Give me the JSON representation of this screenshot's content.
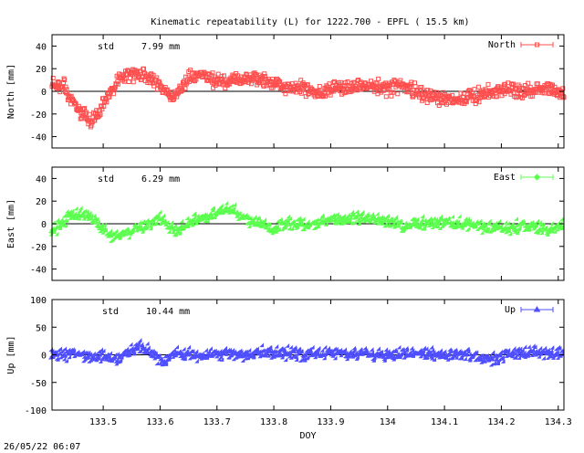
{
  "title": "Kinematic repeatability (L) for 1222.700 - EPFL  ( 15.5 km)",
  "timestamp": "26/05/22 06:07",
  "chart_data": [
    {
      "type": "scatter",
      "ylabel": "North [mm]",
      "ylim": [
        -50,
        50
      ],
      "yticks": [
        -40,
        -20,
        0,
        20,
        40
      ],
      "xlim": [
        133.41,
        134.31
      ],
      "xticks": [
        133.5,
        133.6,
        133.7,
        133.8,
        133.9,
        134.0,
        134.1,
        134.2,
        134.3
      ],
      "std_label": "std",
      "std_value": "7.99 mm",
      "legend": "North",
      "color": "#ff4f4f",
      "marker": "square",
      "profile": [
        [
          133.41,
          7
        ],
        [
          133.43,
          6
        ],
        [
          133.44,
          -5
        ],
        [
          133.46,
          -18
        ],
        [
          133.48,
          -28
        ],
        [
          133.49,
          -22
        ],
        [
          133.5,
          -10
        ],
        [
          133.52,
          5
        ],
        [
          133.53,
          12
        ],
        [
          133.55,
          16
        ],
        [
          133.57,
          15
        ],
        [
          133.59,
          10
        ],
        [
          133.6,
          5
        ],
        [
          133.61,
          0
        ],
        [
          133.62,
          -5
        ],
        [
          133.64,
          5
        ],
        [
          133.65,
          12
        ],
        [
          133.67,
          15
        ],
        [
          133.69,
          10
        ],
        [
          133.72,
          8
        ],
        [
          133.75,
          12
        ],
        [
          133.78,
          10
        ],
        [
          133.82,
          5
        ],
        [
          133.85,
          2
        ],
        [
          133.88,
          0
        ],
        [
          133.92,
          3
        ],
        [
          133.96,
          5
        ],
        [
          134.0,
          2
        ],
        [
          134.02,
          6
        ],
        [
          134.05,
          0
        ],
        [
          134.08,
          -5
        ],
        [
          134.12,
          -8
        ],
        [
          134.15,
          -4
        ],
        [
          134.2,
          2
        ],
        [
          134.25,
          0
        ],
        [
          134.28,
          3
        ],
        [
          134.31,
          -2
        ]
      ],
      "noise": 6
    },
    {
      "type": "scatter",
      "ylabel": "East [mm]",
      "ylim": [
        -50,
        50
      ],
      "yticks": [
        -40,
        -20,
        0,
        20,
        40
      ],
      "xlim": [
        133.41,
        134.31
      ],
      "xticks": [
        133.5,
        133.6,
        133.7,
        133.8,
        133.9,
        134.0,
        134.1,
        134.2,
        134.3
      ],
      "std_label": "std",
      "std_value": "6.29 mm",
      "legend": "East",
      "color": "#5cff4f",
      "marker": "diamond",
      "profile": [
        [
          133.41,
          -8
        ],
        [
          133.42,
          -5
        ],
        [
          133.44,
          5
        ],
        [
          133.46,
          8
        ],
        [
          133.48,
          5
        ],
        [
          133.5,
          -5
        ],
        [
          133.52,
          -12
        ],
        [
          133.54,
          -10
        ],
        [
          133.56,
          -5
        ],
        [
          133.58,
          -3
        ],
        [
          133.6,
          5
        ],
        [
          133.61,
          0
        ],
        [
          133.63,
          -8
        ],
        [
          133.65,
          0
        ],
        [
          133.68,
          5
        ],
        [
          133.7,
          8
        ],
        [
          133.72,
          12
        ],
        [
          133.74,
          8
        ],
        [
          133.76,
          2
        ],
        [
          133.8,
          -5
        ],
        [
          133.83,
          0
        ],
        [
          133.86,
          -3
        ],
        [
          133.89,
          2
        ],
        [
          133.92,
          3
        ],
        [
          133.96,
          5
        ],
        [
          134.0,
          2
        ],
        [
          134.03,
          -3
        ],
        [
          134.06,
          -1
        ],
        [
          134.1,
          0
        ],
        [
          134.15,
          -2
        ],
        [
          134.2,
          -5
        ],
        [
          134.25,
          -3
        ],
        [
          134.28,
          -6
        ],
        [
          134.31,
          -3
        ]
      ],
      "noise": 5
    },
    {
      "type": "scatter",
      "ylabel": "Up [mm]",
      "ylim": [
        -100,
        100
      ],
      "yticks": [
        -100,
        -50,
        0,
        50,
        100
      ],
      "xlim": [
        133.41,
        134.31
      ],
      "xticks": [
        133.5,
        133.6,
        133.7,
        133.8,
        133.9,
        134.0,
        134.1,
        134.2,
        134.3
      ],
      "xticklabels": [
        "133.5",
        "133.6",
        "133.7",
        "133.8",
        "133.9",
        "134",
        "134.1",
        "134.2",
        "134.3"
      ],
      "xlabel": "DOY",
      "std_label": "std",
      "std_value": "10.44 mm",
      "legend": "Up",
      "color": "#4f4fff",
      "marker": "triangle",
      "profile": [
        [
          133.41,
          -3
        ],
        [
          133.45,
          0
        ],
        [
          133.48,
          -8
        ],
        [
          133.5,
          -5
        ],
        [
          133.53,
          -10
        ],
        [
          133.55,
          5
        ],
        [
          133.57,
          10
        ],
        [
          133.59,
          0
        ],
        [
          133.61,
          -15
        ],
        [
          133.63,
          5
        ],
        [
          133.66,
          -5
        ],
        [
          133.7,
          0
        ],
        [
          133.75,
          -3
        ],
        [
          133.8,
          3
        ],
        [
          133.85,
          -2
        ],
        [
          133.9,
          2
        ],
        [
          133.95,
          0
        ],
        [
          134.0,
          -3
        ],
        [
          134.05,
          0
        ],
        [
          134.1,
          -2
        ],
        [
          134.15,
          -3
        ],
        [
          134.18,
          -10
        ],
        [
          134.22,
          0
        ],
        [
          134.27,
          2
        ],
        [
          134.31,
          0
        ]
      ],
      "noise": 10
    }
  ]
}
